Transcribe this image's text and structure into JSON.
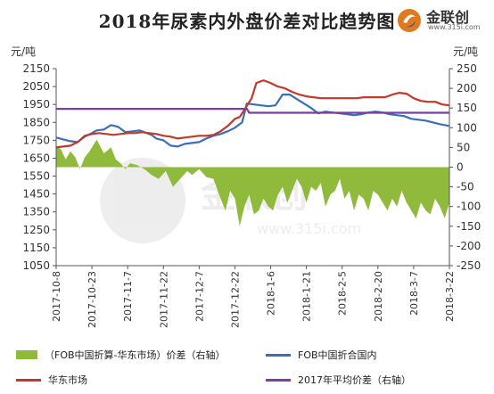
{
  "title": "2018年尿素内外盘价差对比趋势图",
  "logo": {
    "name": "金联创",
    "url": "www.315i.com"
  },
  "watermark": {
    "name": "金联创",
    "url": "www.315i.com"
  },
  "colors": {
    "spread": "#8fba3c",
    "fob": "#3a6fb7",
    "east": "#c0392b",
    "avg": "#7a3fa0",
    "axis": "#555555"
  },
  "chart_data": {
    "type": "line",
    "left_axis": {
      "unit": "元/吨",
      "min": 1050,
      "max": 2150,
      "step": 100,
      "ticks": [
        "2150",
        "2050",
        "1950",
        "1850",
        "1750",
        "1650",
        "1550",
        "1450",
        "1350",
        "1250",
        "1150",
        "1050"
      ]
    },
    "right_axis": {
      "unit": "元/吨",
      "min": -250,
      "max": 250,
      "step": 50,
      "ticks": [
        "250",
        "200",
        "150",
        "100",
        "50",
        "0",
        "-50",
        "-100",
        "-150",
        "-200",
        "-250"
      ]
    },
    "x_start": "2017-10-08",
    "x_end": "2018-03-22",
    "x_ticks": [
      "2017-10-8",
      "2017-10-23",
      "2017-11-7",
      "2017-11-22",
      "2017-12-7",
      "2017-12-22",
      "2018-1-6",
      "2018-1-21",
      "2018-2-5",
      "2018-2-20",
      "2018-3-7",
      "2018-3-22"
    ],
    "series": [
      {
        "name": "（FOB中国折算-华东市场）价差（右轴）",
        "kind": "area",
        "axis": "right",
        "points": [
          [
            0,
            55
          ],
          [
            2,
            45
          ],
          [
            4,
            20
          ],
          [
            6,
            40
          ],
          [
            8,
            25
          ],
          [
            10,
            -5
          ],
          [
            12,
            25
          ],
          [
            14,
            40
          ],
          [
            17,
            70
          ],
          [
            20,
            35
          ],
          [
            23,
            50
          ],
          [
            25,
            20
          ],
          [
            27,
            10
          ],
          [
            29,
            -5
          ],
          [
            31,
            10
          ],
          [
            34,
            5
          ],
          [
            37,
            -5
          ],
          [
            40,
            -20
          ],
          [
            43,
            -30
          ],
          [
            46,
            -10
          ],
          [
            49,
            -50
          ],
          [
            52,
            -30
          ],
          [
            55,
            -10
          ],
          [
            57,
            -20
          ],
          [
            60,
            -5
          ],
          [
            63,
            -25
          ],
          [
            66,
            -30
          ],
          [
            69,
            -80
          ],
          [
            71,
            -110
          ],
          [
            73,
            -60
          ],
          [
            75,
            -80
          ],
          [
            77,
            -150
          ],
          [
            79,
            -100
          ],
          [
            81,
            -70
          ],
          [
            83,
            -120
          ],
          [
            85,
            -110
          ],
          [
            87,
            -80
          ],
          [
            89,
            -100
          ],
          [
            91,
            -110
          ],
          [
            93,
            -70
          ],
          [
            95,
            -50
          ],
          [
            97,
            -90
          ],
          [
            99,
            -60
          ],
          [
            101,
            -30
          ],
          [
            103,
            -50
          ],
          [
            105,
            -90
          ],
          [
            107,
            -50
          ],
          [
            109,
            -60
          ],
          [
            111,
            -40
          ],
          [
            113,
            -100
          ],
          [
            115,
            -70
          ],
          [
            117,
            -60
          ],
          [
            119,
            -30
          ],
          [
            121,
            -80
          ],
          [
            123,
            -60
          ],
          [
            125,
            -110
          ],
          [
            127,
            -70
          ],
          [
            129,
            -80
          ],
          [
            131,
            -110
          ],
          [
            133,
            -60
          ],
          [
            135,
            -70
          ],
          [
            137,
            -90
          ],
          [
            139,
            -110
          ],
          [
            141,
            -80
          ],
          [
            143,
            -100
          ],
          [
            145,
            -60
          ],
          [
            147,
            -90
          ],
          [
            149,
            -110
          ],
          [
            151,
            -130
          ],
          [
            153,
            -90
          ],
          [
            155,
            -110
          ],
          [
            157,
            -120
          ],
          [
            159,
            -80
          ],
          [
            161,
            -100
          ],
          [
            163,
            -130
          ],
          [
            165,
            -90
          ]
        ]
      },
      {
        "name": "FOB中国折合国内",
        "kind": "line",
        "axis": "left",
        "points": [
          [
            0,
            1765
          ],
          [
            3,
            1755
          ],
          [
            6,
            1745
          ],
          [
            9,
            1740
          ],
          [
            12,
            1770
          ],
          [
            15,
            1790
          ],
          [
            17,
            1805
          ],
          [
            20,
            1810
          ],
          [
            23,
            1835
          ],
          [
            26,
            1825
          ],
          [
            29,
            1795
          ],
          [
            32,
            1800
          ],
          [
            35,
            1805
          ],
          [
            37,
            1795
          ],
          [
            40,
            1780
          ],
          [
            42,
            1760
          ],
          [
            45,
            1750
          ],
          [
            48,
            1720
          ],
          [
            51,
            1715
          ],
          [
            54,
            1730
          ],
          [
            57,
            1735
          ],
          [
            60,
            1740
          ],
          [
            63,
            1760
          ],
          [
            66,
            1775
          ],
          [
            69,
            1785
          ],
          [
            72,
            1800
          ],
          [
            75,
            1820
          ],
          [
            78,
            1850
          ],
          [
            80,
            1955
          ],
          [
            83,
            1950
          ],
          [
            86,
            1945
          ],
          [
            89,
            1940
          ],
          [
            92,
            1945
          ],
          [
            95,
            2005
          ],
          [
            98,
            2005
          ],
          [
            101,
            1980
          ],
          [
            104,
            1955
          ],
          [
            107,
            1930
          ],
          [
            110,
            1900
          ],
          [
            113,
            1910
          ],
          [
            116,
            1905
          ],
          [
            119,
            1900
          ],
          [
            122,
            1895
          ],
          [
            125,
            1890
          ],
          [
            128,
            1895
          ],
          [
            131,
            1905
          ],
          [
            134,
            1910
          ],
          [
            137,
            1905
          ],
          [
            140,
            1895
          ],
          [
            143,
            1890
          ],
          [
            146,
            1885
          ],
          [
            149,
            1870
          ],
          [
            152,
            1865
          ],
          [
            155,
            1860
          ],
          [
            158,
            1850
          ],
          [
            161,
            1840
          ],
          [
            163,
            1835
          ],
          [
            165,
            1830
          ]
        ]
      },
      {
        "name": "华东市场",
        "kind": "line",
        "axis": "left",
        "points": [
          [
            0,
            1710
          ],
          [
            3,
            1715
          ],
          [
            6,
            1720
          ],
          [
            9,
            1740
          ],
          [
            12,
            1775
          ],
          [
            15,
            1785
          ],
          [
            18,
            1790
          ],
          [
            21,
            1785
          ],
          [
            24,
            1780
          ],
          [
            27,
            1785
          ],
          [
            30,
            1790
          ],
          [
            33,
            1790
          ],
          [
            36,
            1795
          ],
          [
            39,
            1790
          ],
          [
            42,
            1785
          ],
          [
            45,
            1775
          ],
          [
            48,
            1770
          ],
          [
            51,
            1760
          ],
          [
            54,
            1765
          ],
          [
            57,
            1770
          ],
          [
            60,
            1775
          ],
          [
            63,
            1775
          ],
          [
            66,
            1780
          ],
          [
            69,
            1800
          ],
          [
            72,
            1830
          ],
          [
            75,
            1870
          ],
          [
            77,
            1880
          ],
          [
            79,
            1920
          ],
          [
            82,
            1985
          ],
          [
            84,
            2070
          ],
          [
            87,
            2085
          ],
          [
            90,
            2070
          ],
          [
            93,
            2050
          ],
          [
            96,
            2040
          ],
          [
            99,
            2020
          ],
          [
            102,
            2005
          ],
          [
            105,
            1995
          ],
          [
            108,
            1990
          ],
          [
            111,
            1985
          ],
          [
            114,
            1985
          ],
          [
            117,
            1985
          ],
          [
            120,
            1985
          ],
          [
            123,
            1985
          ],
          [
            126,
            1985
          ],
          [
            129,
            1990
          ],
          [
            132,
            1990
          ],
          [
            135,
            1990
          ],
          [
            138,
            1990
          ],
          [
            141,
            2005
          ],
          [
            144,
            2015
          ],
          [
            147,
            2010
          ],
          [
            150,
            1985
          ],
          [
            153,
            1970
          ],
          [
            156,
            1965
          ],
          [
            159,
            1965
          ],
          [
            162,
            1950
          ],
          [
            165,
            1945
          ]
        ]
      },
      {
        "name": "2017年平均价差（右轴）",
        "kind": "line",
        "axis": "right",
        "points": [
          [
            0,
            148
          ],
          [
            80,
            148
          ],
          [
            81,
            138
          ],
          [
            165,
            138
          ]
        ]
      }
    ],
    "legend": [
      {
        "key": "spread",
        "label": "（FOB中国折算-华东市场）价差（右轴）"
      },
      {
        "key": "fob",
        "label": "FOB中国折合国内"
      },
      {
        "key": "east",
        "label": "华东市场"
      },
      {
        "key": "avg",
        "label": "2017年平均价差（右轴）"
      }
    ]
  }
}
